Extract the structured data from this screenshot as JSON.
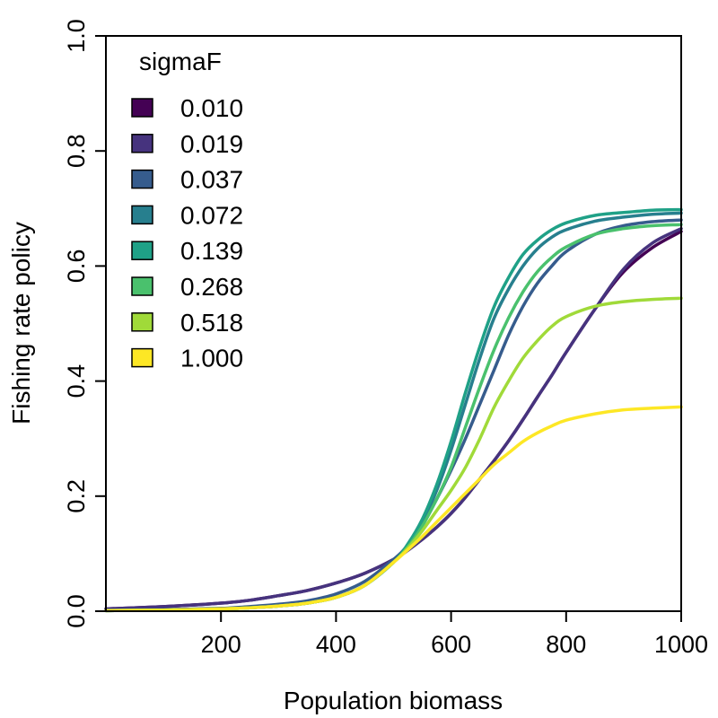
{
  "chart_data": {
    "type": "line",
    "xlabel": "Population biomass",
    "ylabel": "Fishing rate policy",
    "xlim": [
      0,
      1000
    ],
    "ylim": [
      0,
      1.0
    ],
    "x_ticks": [
      200,
      400,
      600,
      800,
      1000
    ],
    "y_ticks": [
      0.0,
      0.2,
      0.4,
      0.6,
      0.8,
      1.0
    ],
    "x_tick_labels": [
      "200",
      "400",
      "600",
      "800",
      "1000"
    ],
    "y_tick_labels": [
      "0.0",
      "0.2",
      "0.4",
      "0.6",
      "0.8",
      "1.0"
    ],
    "grid": false,
    "legend": {
      "title": "sigmaF",
      "position": "top-left"
    },
    "x": [
      0,
      100,
      200,
      250,
      300,
      350,
      400,
      450,
      500,
      525,
      550,
      575,
      600,
      625,
      650,
      675,
      700,
      725,
      750,
      775,
      800,
      850,
      900,
      950,
      1000
    ],
    "series": [
      {
        "name": "0.010",
        "color": "#440154",
        "values": [
          0.004,
          0.008,
          0.014,
          0.019,
          0.027,
          0.036,
          0.049,
          0.066,
          0.09,
          0.106,
          0.125,
          0.146,
          0.17,
          0.198,
          0.23,
          0.262,
          0.296,
          0.333,
          0.372,
          0.41,
          0.45,
          0.525,
          0.59,
          0.632,
          0.66
        ]
      },
      {
        "name": "0.019",
        "color": "#46337E",
        "values": [
          0.004,
          0.008,
          0.014,
          0.019,
          0.027,
          0.036,
          0.049,
          0.066,
          0.09,
          0.106,
          0.125,
          0.146,
          0.17,
          0.198,
          0.23,
          0.262,
          0.296,
          0.333,
          0.372,
          0.41,
          0.45,
          0.525,
          0.595,
          0.64,
          0.665
        ]
      },
      {
        "name": "0.037",
        "color": "#365C8D",
        "values": [
          0.002,
          0.003,
          0.005,
          0.008,
          0.012,
          0.018,
          0.03,
          0.052,
          0.09,
          0.115,
          0.15,
          0.195,
          0.245,
          0.3,
          0.36,
          0.42,
          0.48,
          0.53,
          0.57,
          0.6,
          0.625,
          0.655,
          0.67,
          0.677,
          0.68
        ]
      },
      {
        "name": "0.072",
        "color": "#277F8E",
        "values": [
          0.001,
          0.002,
          0.004,
          0.006,
          0.009,
          0.014,
          0.024,
          0.045,
          0.085,
          0.115,
          0.155,
          0.21,
          0.28,
          0.36,
          0.44,
          0.51,
          0.56,
          0.6,
          0.63,
          0.65,
          0.663,
          0.678,
          0.685,
          0.69,
          0.692
        ]
      },
      {
        "name": "0.139",
        "color": "#1FA187",
        "values": [
          0.001,
          0.002,
          0.004,
          0.006,
          0.009,
          0.014,
          0.024,
          0.045,
          0.085,
          0.117,
          0.16,
          0.22,
          0.295,
          0.38,
          0.46,
          0.53,
          0.58,
          0.62,
          0.645,
          0.663,
          0.675,
          0.688,
          0.693,
          0.697,
          0.698
        ]
      },
      {
        "name": "0.268",
        "color": "#4AC16D",
        "values": [
          0.001,
          0.002,
          0.004,
          0.006,
          0.009,
          0.014,
          0.024,
          0.045,
          0.085,
          0.112,
          0.148,
          0.195,
          0.25,
          0.32,
          0.39,
          0.455,
          0.51,
          0.555,
          0.59,
          0.615,
          0.633,
          0.655,
          0.665,
          0.67,
          0.672
        ]
      },
      {
        "name": "0.518",
        "color": "#A0DA39",
        "values": [
          0.001,
          0.002,
          0.004,
          0.006,
          0.009,
          0.014,
          0.024,
          0.045,
          0.085,
          0.11,
          0.14,
          0.175,
          0.21,
          0.25,
          0.3,
          0.355,
          0.4,
          0.44,
          0.47,
          0.495,
          0.512,
          0.53,
          0.538,
          0.542,
          0.544
        ]
      },
      {
        "name": "1.000",
        "color": "#FDE725",
        "values": [
          0.001,
          0.002,
          0.004,
          0.006,
          0.009,
          0.014,
          0.024,
          0.045,
          0.085,
          0.107,
          0.13,
          0.155,
          0.18,
          0.205,
          0.23,
          0.255,
          0.275,
          0.295,
          0.31,
          0.322,
          0.332,
          0.343,
          0.35,
          0.353,
          0.355
        ]
      }
    ]
  }
}
